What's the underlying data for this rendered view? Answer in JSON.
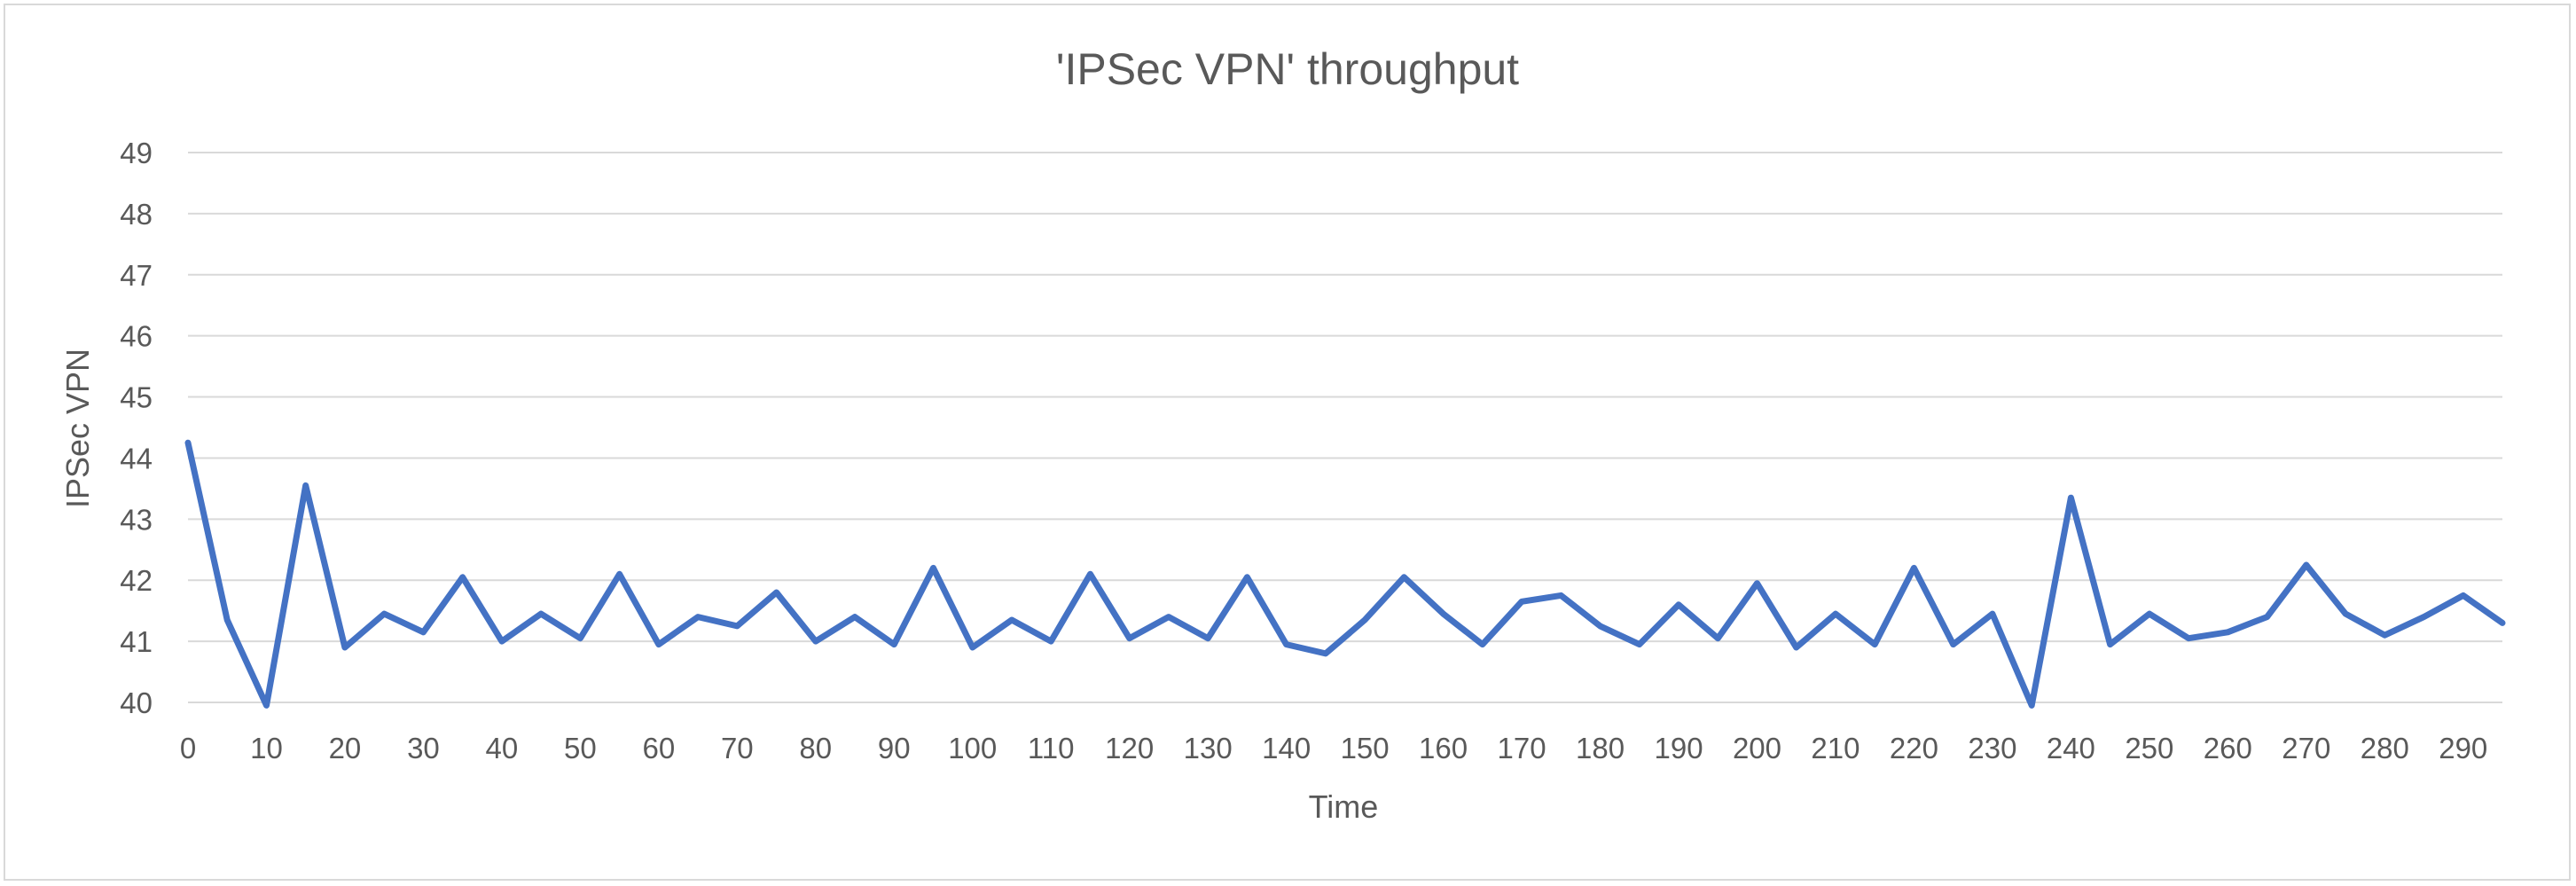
{
  "chart_data": {
    "type": "line",
    "title": "'IPSec VPN' throughput",
    "xlabel": "Time",
    "ylabel": "IPSec VPN",
    "xlim": [
      0,
      295
    ],
    "ylim": [
      40,
      49
    ],
    "x_ticks": [
      0,
      10,
      20,
      30,
      40,
      50,
      60,
      70,
      80,
      90,
      100,
      110,
      120,
      130,
      140,
      150,
      160,
      170,
      180,
      190,
      200,
      210,
      220,
      230,
      240,
      250,
      260,
      270,
      280,
      290
    ],
    "y_ticks": [
      40,
      41,
      42,
      43,
      44,
      45,
      46,
      47,
      48,
      49
    ],
    "grid": true,
    "legend": "none",
    "series": [
      {
        "color": "#4472c4",
        "x": [
          0,
          5,
          10,
          15,
          20,
          25,
          30,
          35,
          40,
          45,
          50,
          55,
          60,
          65,
          70,
          75,
          80,
          85,
          90,
          95,
          100,
          105,
          110,
          115,
          120,
          125,
          130,
          135,
          140,
          145,
          150,
          155,
          160,
          165,
          170,
          175,
          180,
          185,
          190,
          195,
          200,
          205,
          210,
          215,
          220,
          225,
          230,
          235,
          240,
          245,
          250,
          255,
          260,
          265,
          270,
          275,
          280,
          285,
          290,
          295
        ],
        "y": [
          44.25,
          41.35,
          39.95,
          43.55,
          40.9,
          41.45,
          41.15,
          42.05,
          41.0,
          41.45,
          41.05,
          42.1,
          40.95,
          41.4,
          41.25,
          41.8,
          41.0,
          41.4,
          40.95,
          42.2,
          40.9,
          41.35,
          41.0,
          42.1,
          41.05,
          41.4,
          41.05,
          42.05,
          40.95,
          40.8,
          41.35,
          42.05,
          41.45,
          40.95,
          41.65,
          41.75,
          41.25,
          40.95,
          41.6,
          41.05,
          41.95,
          40.9,
          41.45,
          40.95,
          42.2,
          40.95,
          41.45,
          39.95,
          43.35,
          40.95,
          41.45,
          41.05,
          41.15,
          41.4,
          42.25,
          41.45,
          41.1,
          41.4,
          41.75,
          41.3
        ]
      }
    ]
  }
}
